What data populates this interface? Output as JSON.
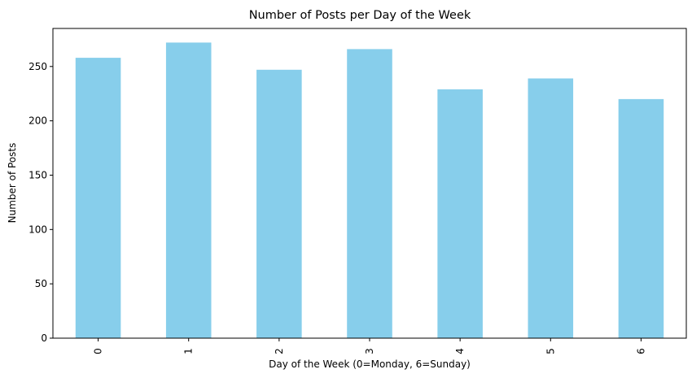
{
  "chart_data": {
    "type": "bar",
    "title": "Number of Posts per Day of the Week",
    "xlabel": "Day of the Week (0=Monday, 6=Sunday)",
    "ylabel": "Number of Posts",
    "categories": [
      "0",
      "1",
      "2",
      "3",
      "4",
      "5",
      "6"
    ],
    "values": [
      258,
      272,
      247,
      266,
      229,
      239,
      220
    ],
    "ylim": [
      0,
      285
    ],
    "yticks": [
      0,
      50,
      100,
      150,
      200,
      250
    ],
    "bar_color": "#87CEEB",
    "grid": false,
    "legend": "none"
  }
}
